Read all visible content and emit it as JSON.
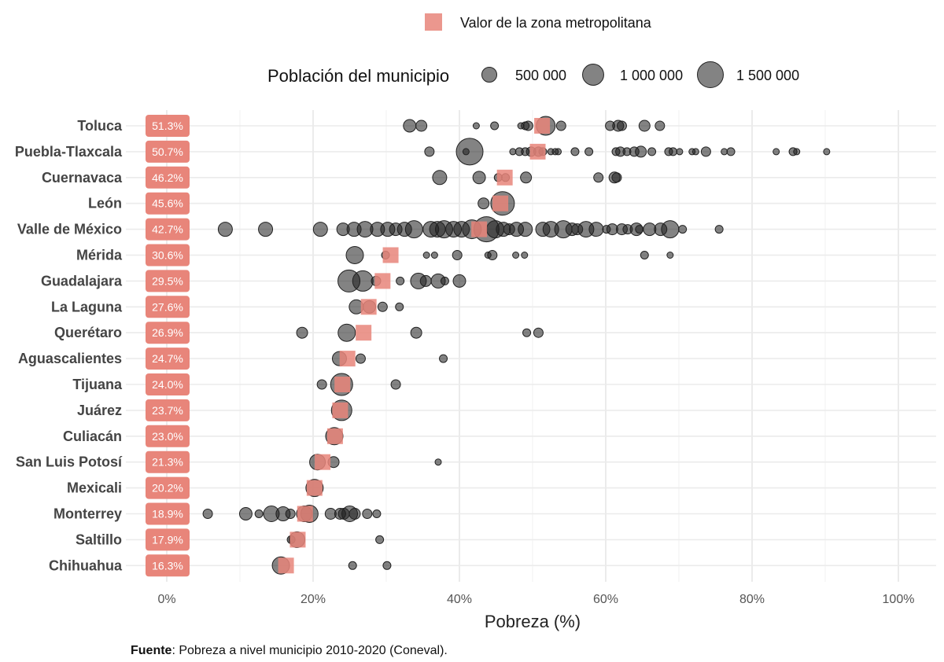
{
  "chart_data": {
    "type": "scatter",
    "xlabel": "Pobreza (%)",
    "xlim": [
      0,
      100
    ],
    "x_ticks": [
      "0%",
      "20%",
      "40%",
      "60%",
      "80%",
      "100%"
    ],
    "grid": true,
    "legend_square_label": "Valor de la zona metropolitana",
    "size_legend": {
      "title": "Población del municipio",
      "entries": [
        {
          "label": "500 000",
          "value": 500000
        },
        {
          "label": "1 000 000",
          "value": 1000000
        },
        {
          "label": "1 500 000",
          "value": 1500000
        }
      ]
    },
    "legend_placement": "top",
    "colors": {
      "metro": "#e8857a",
      "point": "#333333",
      "grid": "#ebebeb"
    },
    "source_bold": "Fuente",
    "source_text": ": Pobreza a nivel municipio 2010-2020 (Coneval).",
    "point_format": "[pobreza_pct, poblacion]",
    "rows": [
      {
        "name": "Toluca",
        "metro_label": "51.3%",
        "metro": 51.3,
        "points": [
          [
            33.2,
            350000
          ],
          [
            34.8,
            270000
          ],
          [
            42.3,
            88000
          ],
          [
            44.8,
            138000
          ],
          [
            48.4,
            88000
          ],
          [
            49.0,
            138000
          ],
          [
            49.4,
            198000
          ],
          [
            51.8,
            793000
          ],
          [
            53.9,
            198000
          ],
          [
            60.6,
            198000
          ],
          [
            61.7,
            270000
          ],
          [
            62.2,
            198000
          ],
          [
            65.3,
            270000
          ],
          [
            67.4,
            198000
          ]
        ]
      },
      {
        "name": "Puebla-Tlaxcala",
        "metro_label": "50.7%",
        "metro": 50.7,
        "points": [
          [
            35.9,
            198000
          ],
          [
            41.4,
            1590000
          ],
          [
            40.9,
            88000
          ],
          [
            47.3,
            88000
          ],
          [
            48.2,
            138000
          ],
          [
            49.0,
            138000
          ],
          [
            49.8,
            198000
          ],
          [
            50.8,
            198000
          ],
          [
            51.4,
            138000
          ],
          [
            52.5,
            88000
          ],
          [
            53.1,
            88000
          ],
          [
            53.5,
            88000
          ],
          [
            55.8,
            138000
          ],
          [
            57.7,
            138000
          ],
          [
            61.4,
            138000
          ],
          [
            62.0,
            198000
          ],
          [
            62.9,
            138000
          ],
          [
            63.9,
            198000
          ],
          [
            64.8,
            270000
          ],
          [
            66.3,
            138000
          ],
          [
            68.6,
            138000
          ],
          [
            69.2,
            138000
          ],
          [
            70.1,
            88000
          ],
          [
            71.8,
            88000
          ],
          [
            72.3,
            88000
          ],
          [
            73.7,
            198000
          ],
          [
            76.2,
            88000
          ],
          [
            77.1,
            138000
          ],
          [
            83.3,
            88000
          ],
          [
            85.6,
            138000
          ],
          [
            86.1,
            88000
          ],
          [
            90.2,
            88000
          ]
        ]
      },
      {
        "name": "Cuernavaca",
        "metro_label": "46.2%",
        "metro": 46.2,
        "points": [
          [
            37.3,
            446000
          ],
          [
            42.7,
            350000
          ],
          [
            45.3,
            138000
          ],
          [
            46.3,
            138000
          ],
          [
            49.1,
            270000
          ],
          [
            59.0,
            198000
          ],
          [
            61.2,
            270000
          ],
          [
            61.5,
            198000
          ]
        ]
      },
      {
        "name": "León",
        "metro_label": "45.6%",
        "metro": 45.6,
        "points": [
          [
            43.3,
            270000
          ],
          [
            45.9,
            1240000
          ]
        ]
      },
      {
        "name": "Valle de México",
        "metro_label": "42.7%",
        "metro": 42.7,
        "points": [
          [
            8.0,
            446000
          ],
          [
            13.5,
            446000
          ],
          [
            21.0,
            446000
          ],
          [
            24.1,
            350000
          ],
          [
            25.6,
            446000
          ],
          [
            27.1,
            550000
          ],
          [
            28.8,
            446000
          ],
          [
            30.2,
            446000
          ],
          [
            31.3,
            350000
          ],
          [
            32.5,
            446000
          ],
          [
            33.8,
            667000
          ],
          [
            36.1,
            550000
          ],
          [
            37.0,
            550000
          ],
          [
            37.9,
            667000
          ],
          [
            39.2,
            550000
          ],
          [
            40.3,
            550000
          ],
          [
            41.7,
            793000
          ],
          [
            43.7,
            1410000
          ],
          [
            44.9,
            667000
          ],
          [
            46.0,
            446000
          ],
          [
            46.8,
            270000
          ],
          [
            47.8,
            446000
          ],
          [
            49.0,
            446000
          ],
          [
            51.4,
            446000
          ],
          [
            52.5,
            550000
          ],
          [
            54.2,
            667000
          ],
          [
            55.4,
            350000
          ],
          [
            56.1,
            270000
          ],
          [
            57.3,
            550000
          ],
          [
            58.7,
            446000
          ],
          [
            60.1,
            138000
          ],
          [
            60.9,
            270000
          ],
          [
            62.2,
            270000
          ],
          [
            63.0,
            198000
          ],
          [
            64.2,
            350000
          ],
          [
            64.6,
            138000
          ],
          [
            66.0,
            350000
          ],
          [
            67.5,
            350000
          ],
          [
            68.8,
            667000
          ],
          [
            70.5,
            138000
          ],
          [
            75.5,
            138000
          ]
        ]
      },
      {
        "name": "Mérida",
        "metro_label": "30.6%",
        "metro": 30.6,
        "points": [
          [
            25.7,
            667000
          ],
          [
            29.9,
            138000
          ],
          [
            35.5,
            88000
          ],
          [
            36.6,
            88000
          ],
          [
            39.7,
            198000
          ],
          [
            43.9,
            88000
          ],
          [
            44.5,
            198000
          ],
          [
            47.7,
            88000
          ],
          [
            48.9,
            88000
          ],
          [
            65.3,
            138000
          ],
          [
            68.8,
            88000
          ]
        ]
      },
      {
        "name": "Guadalajara",
        "metro_label": "29.5%",
        "metro": 29.5,
        "points": [
          [
            24.9,
            1080000
          ],
          [
            26.8,
            931000
          ],
          [
            28.6,
            198000
          ],
          [
            31.9,
            138000
          ],
          [
            34.4,
            550000
          ],
          [
            35.4,
            270000
          ],
          [
            37.1,
            446000
          ],
          [
            38.0,
            138000
          ],
          [
            40.0,
            350000
          ]
        ]
      },
      {
        "name": "La Laguna",
        "metro_label": "27.6%",
        "metro": 27.6,
        "points": [
          [
            25.9,
            446000
          ],
          [
            27.7,
            350000
          ],
          [
            29.5,
            198000
          ],
          [
            31.8,
            138000
          ]
        ]
      },
      {
        "name": "Querétaro",
        "metro_label": "26.9%",
        "metro": 26.9,
        "points": [
          [
            18.5,
            270000
          ],
          [
            24.6,
            667000
          ],
          [
            34.1,
            270000
          ],
          [
            49.2,
            138000
          ],
          [
            50.8,
            198000
          ]
        ]
      },
      {
        "name": "Aguascalientes",
        "metro_label": "24.7%",
        "metro": 24.7,
        "points": [
          [
            23.6,
            446000
          ],
          [
            26.5,
            198000
          ],
          [
            37.8,
            138000
          ]
        ]
      },
      {
        "name": "Tijuana",
        "metro_label": "24.0%",
        "metro": 24.0,
        "points": [
          [
            21.2,
            198000
          ],
          [
            23.9,
            1080000
          ],
          [
            31.3,
            198000
          ]
        ]
      },
      {
        "name": "Juárez",
        "metro_label": "23.7%",
        "metro": 23.7,
        "points": [
          [
            23.9,
            931000
          ]
        ]
      },
      {
        "name": "Culiacán",
        "metro_label": "23.0%",
        "metro": 23.0,
        "points": [
          [
            22.9,
            667000
          ]
        ]
      },
      {
        "name": "San Luis Potosí",
        "metro_label": "21.3%",
        "metro": 21.3,
        "points": [
          [
            20.6,
            550000
          ],
          [
            22.8,
            270000
          ],
          [
            37.1,
            88000
          ]
        ]
      },
      {
        "name": "Mexicali",
        "metro_label": "20.2%",
        "metro": 20.2,
        "points": [
          [
            20.2,
            667000
          ]
        ]
      },
      {
        "name": "Monterrey",
        "metro_label": "18.9%",
        "metro": 18.9,
        "points": [
          [
            5.6,
            198000
          ],
          [
            10.8,
            350000
          ],
          [
            12.6,
            138000
          ],
          [
            14.3,
            550000
          ],
          [
            15.9,
            446000
          ],
          [
            16.9,
            198000
          ],
          [
            18.8,
            550000
          ],
          [
            19.5,
            667000
          ],
          [
            22.4,
            270000
          ],
          [
            23.7,
            270000
          ],
          [
            24.2,
            270000
          ],
          [
            25.0,
            550000
          ],
          [
            25.7,
            270000
          ],
          [
            27.4,
            198000
          ],
          [
            28.7,
            138000
          ]
        ]
      },
      {
        "name": "Saltillo",
        "metro_label": "17.9%",
        "metro": 17.9,
        "points": [
          [
            17.0,
            138000
          ],
          [
            17.8,
            550000
          ],
          [
            29.1,
            138000
          ]
        ]
      },
      {
        "name": "Chihuahua",
        "metro_label": "16.3%",
        "metro": 16.3,
        "points": [
          [
            15.6,
            667000
          ],
          [
            25.4,
            138000
          ],
          [
            30.1,
            138000
          ]
        ]
      }
    ]
  }
}
